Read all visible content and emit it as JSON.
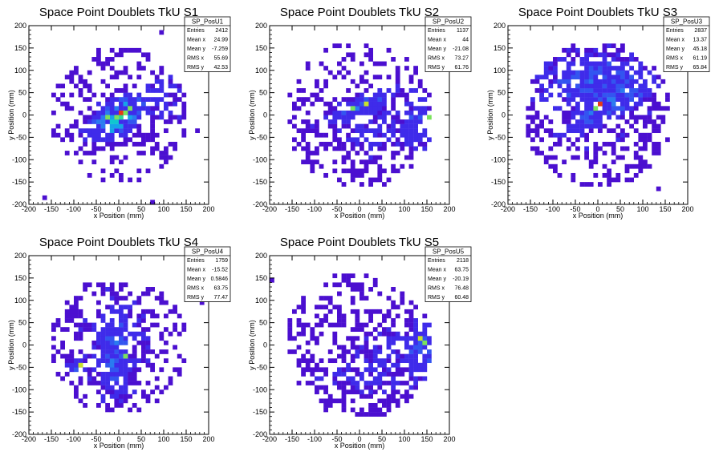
{
  "chart_data": [
    {
      "type": "heatmap",
      "title": "Space Point Doublets TkU S1",
      "xlabel": "x Position (mm)",
      "ylabel": "y Position (mm)",
      "xlim": [
        -200,
        200
      ],
      "ylim": [
        -200,
        200
      ],
      "xticks": [
        -200,
        -150,
        -100,
        -50,
        0,
        50,
        100,
        150,
        200
      ],
      "yticks": [
        -200,
        -150,
        -100,
        -50,
        0,
        50,
        100,
        150,
        200
      ],
      "stats": {
        "name": "SP_PosU1",
        "rows": [
          {
            "label": "Entries",
            "value": "2412"
          },
          {
            "label": "Mean x",
            "value": "24.99"
          },
          {
            "label": "Mean y",
            "value": "-7.259"
          },
          {
            "label": "RMS x",
            "value": "55.69"
          },
          {
            "label": "RMS y",
            "value": "42.53"
          }
        ]
      },
      "blobs": [
        {
          "x": 0,
          "y": -5,
          "sx": 45,
          "sy": 22,
          "rot": 35,
          "w": 5.0
        },
        {
          "x": 110,
          "y": 35,
          "sx": 30,
          "sy": 60,
          "rot": 0,
          "w": 1.2
        },
        {
          "x": -60,
          "y": 30,
          "sx": 60,
          "sy": 70,
          "rot": 0,
          "w": 0.35
        }
      ],
      "radius": 150,
      "seed": 11,
      "hot": [
        [
          0,
          0
        ],
        [
          -10,
          -5
        ],
        [
          10,
          5
        ],
        [
          25,
          15
        ],
        [
          -25,
          -10
        ]
      ]
    },
    {
      "type": "heatmap",
      "title": "Space Point Doublets TkU S2",
      "xlabel": "x Position (mm)",
      "ylabel": "y Position (mm)",
      "xlim": [
        -200,
        200
      ],
      "ylim": [
        -200,
        200
      ],
      "xticks": [
        -200,
        -150,
        -100,
        -50,
        0,
        50,
        100,
        150,
        200
      ],
      "yticks": [
        -200,
        -150,
        -100,
        -50,
        0,
        50,
        100,
        150,
        200
      ],
      "stats": {
        "name": "SP_PosU2",
        "rows": [
          {
            "label": "Entries",
            "value": "1137"
          },
          {
            "label": "Mean x",
            "value": "44"
          },
          {
            "label": "Mean y",
            "value": "-21.08"
          },
          {
            "label": "RMS x",
            "value": "73.27"
          },
          {
            "label": "RMS y",
            "value": "61.76"
          }
        ]
      },
      "blobs": [
        {
          "x": 30,
          "y": -30,
          "sx": 70,
          "sy": 60,
          "rot": 0,
          "w": 1.2
        },
        {
          "x": 0,
          "y": 20,
          "sx": 70,
          "sy": 12,
          "rot": 25,
          "w": 1.8
        },
        {
          "x": 130,
          "y": -20,
          "sx": 25,
          "sy": 40,
          "rot": 0,
          "w": 1.4
        }
      ],
      "radius": 160,
      "seed": 23,
      "hot": [
        [
          10,
          25
        ],
        [
          -20,
          15
        ],
        [
          150,
          -10
        ]
      ]
    },
    {
      "type": "heatmap",
      "title": "Space Point Doublets TkU S3",
      "xlabel": "x Position (mm)",
      "ylabel": "y Position (mm)",
      "xlim": [
        -200,
        200
      ],
      "ylim": [
        -200,
        200
      ],
      "xticks": [
        -200,
        -150,
        -100,
        -50,
        0,
        50,
        100,
        150,
        200
      ],
      "yticks": [
        -200,
        -150,
        -100,
        -50,
        0,
        50,
        100,
        150,
        200
      ],
      "stats": {
        "name": "SP_PosU3",
        "rows": [
          {
            "label": "Entries",
            "value": "2837"
          },
          {
            "label": "Mean x",
            "value": "13.37"
          },
          {
            "label": "Mean y",
            "value": "45.18"
          },
          {
            "label": "RMS x",
            "value": "61.19"
          },
          {
            "label": "RMS y",
            "value": "65.84"
          }
        ]
      },
      "blobs": [
        {
          "x": 0,
          "y": 80,
          "sx": 100,
          "sy": 45,
          "rot": 0,
          "w": 1.8
        },
        {
          "x": 10,
          "y": 10,
          "sx": 60,
          "sy": 15,
          "rot": 30,
          "w": 2.0
        },
        {
          "x": 0,
          "y": 0,
          "sx": 90,
          "sy": 90,
          "rot": 0,
          "w": 0.7
        }
      ],
      "radius": 160,
      "seed": 37,
      "hot": [
        [
          0,
          20
        ],
        [
          -5,
          15
        ]
      ]
    },
    {
      "type": "heatmap",
      "title": "Space Point Doublets TkU S4",
      "xlabel": "x Position (mm)",
      "ylabel": "y Position (mm)",
      "xlim": [
        -200,
        200
      ],
      "ylim": [
        -200,
        200
      ],
      "xticks": [
        -200,
        -150,
        -100,
        -50,
        0,
        50,
        100,
        150,
        200
      ],
      "yticks": [
        -200,
        -150,
        -100,
        -50,
        0,
        50,
        100,
        150,
        200
      ],
      "stats": {
        "name": "SP_PosU4",
        "rows": [
          {
            "label": "Entries",
            "value": "1759"
          },
          {
            "label": "Mean x",
            "value": "-15.52"
          },
          {
            "label": "Mean y",
            "value": "0.5846"
          },
          {
            "label": "RMS x",
            "value": "63.75"
          },
          {
            "label": "RMS y",
            "value": "77.47"
          }
        ]
      },
      "blobs": [
        {
          "x": -10,
          "y": 0,
          "sx": 70,
          "sy": 90,
          "rot": 0,
          "w": 1.4
        },
        {
          "x": -10,
          "y": -30,
          "sx": 15,
          "sy": 50,
          "rot": 0,
          "w": 1.5
        },
        {
          "x": -90,
          "y": -50,
          "sx": 15,
          "sy": 10,
          "rot": 0,
          "w": 1.2
        }
      ],
      "radius": 150,
      "seed": 51,
      "hot": [
        [
          -90,
          -50
        ],
        [
          10,
          -30
        ]
      ]
    },
    {
      "type": "heatmap",
      "title": "Space Point Doublets TkU S5",
      "xlabel": "x Position (mm)",
      "ylabel": "y Position (mm)",
      "xlim": [
        -200,
        200
      ],
      "ylim": [
        -200,
        200
      ],
      "xticks": [
        -200,
        -150,
        -100,
        -50,
        0,
        50,
        100,
        150,
        200
      ],
      "yticks": [
        -200,
        -150,
        -100,
        -50,
        0,
        50,
        100,
        150,
        200
      ],
      "stats": {
        "name": "SP_PosU5",
        "rows": [
          {
            "label": "Entries",
            "value": "2118"
          },
          {
            "label": "Mean x",
            "value": "63.75"
          },
          {
            "label": "Mean y",
            "value": "-20.19"
          },
          {
            "label": "RMS x",
            "value": "76.48"
          },
          {
            "label": "RMS y",
            "value": "60.48"
          }
        ]
      },
      "blobs": [
        {
          "x": 140,
          "y": 0,
          "sx": 20,
          "sy": 40,
          "rot": 0,
          "w": 2.0
        },
        {
          "x": 60,
          "y": -30,
          "sx": 80,
          "sy": 70,
          "rot": 0,
          "w": 1.0
        },
        {
          "x": -30,
          "y": -80,
          "sx": 60,
          "sy": 30,
          "rot": 0,
          "w": 0.8
        }
      ],
      "radius": 160,
      "seed": 67,
      "hot": [
        [
          135,
          15
        ],
        [
          145,
          0
        ]
      ]
    }
  ]
}
